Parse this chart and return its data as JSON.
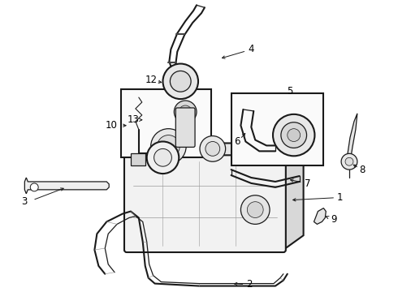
{
  "bg_color": "#ffffff",
  "line_color": "#1a1a1a",
  "label_color": "#000000",
  "label_fontsize": 8.5,
  "lw": 0.9,
  "fig_w": 4.9,
  "fig_h": 3.6,
  "dpi": 100
}
